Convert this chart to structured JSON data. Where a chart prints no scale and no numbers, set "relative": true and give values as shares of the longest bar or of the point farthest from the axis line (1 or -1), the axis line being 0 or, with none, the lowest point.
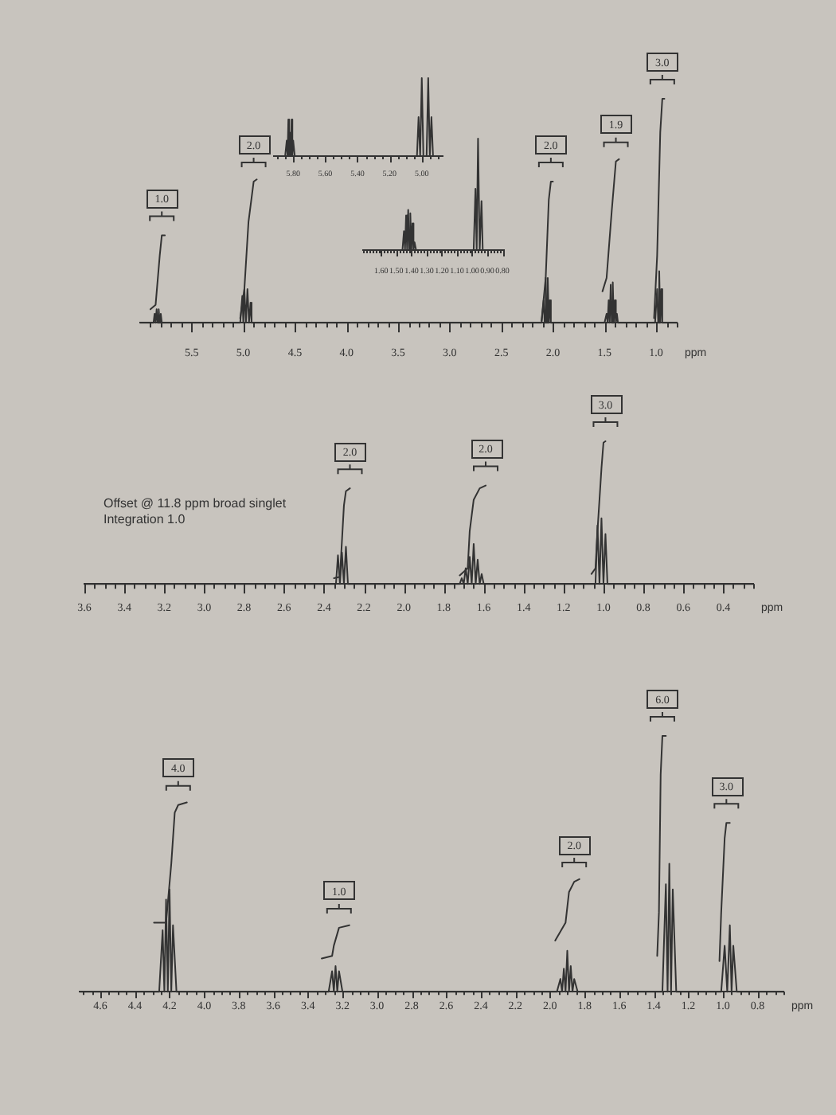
{
  "chart_data": [
    {
      "type": "line",
      "xlabel": "ppm",
      "relative": true,
      "xlim": [
        6.0,
        0.8
      ],
      "xticks": [
        {
          "value": 5.9,
          "label": null
        },
        {
          "value": 5.8,
          "label": null
        },
        {
          "value": 5.7,
          "label": null
        },
        {
          "value": 5.6,
          "label": null
        },
        5.5,
        {
          "value": 5.4,
          "label": null
        },
        {
          "value": 5.3,
          "label": null
        },
        {
          "value": 5.2,
          "label": null
        },
        {
          "value": 5.1,
          "label": null
        },
        {
          "value": 5,
          "label": "5.0"
        },
        {
          "value": 4.9,
          "label": null
        },
        {
          "value": 4.8,
          "label": null
        },
        {
          "value": 4.7,
          "label": null
        },
        {
          "value": 4.6,
          "label": null
        },
        4.5,
        {
          "value": 4.4,
          "label": null
        },
        {
          "value": 4.3,
          "label": null
        },
        {
          "value": 4.2,
          "label": null
        },
        {
          "value": 4.1,
          "label": null
        },
        {
          "value": 4,
          "label": "4.0"
        },
        {
          "value": 3.9,
          "label": null
        },
        {
          "value": 3.8,
          "label": null
        },
        {
          "value": 3.7,
          "label": null
        },
        {
          "value": 3.6,
          "label": null
        },
        3.5,
        {
          "value": 3.4,
          "label": null
        },
        {
          "value": 3.3,
          "label": null
        },
        {
          "value": 3.2,
          "label": null
        },
        {
          "value": 3.1,
          "label": null
        },
        {
          "value": 3,
          "label": "3.0"
        },
        {
          "value": 2.9,
          "label": null
        },
        {
          "value": 2.8,
          "label": null
        },
        {
          "value": 2.7,
          "label": null
        },
        {
          "value": 2.6,
          "label": null
        },
        2.5,
        {
          "value": 2.4,
          "label": null
        },
        {
          "value": 2.3,
          "label": null
        },
        {
          "value": 2.2,
          "label": null
        },
        {
          "value": 2.1,
          "label": null
        },
        {
          "value": 2,
          "label": "2.0"
        },
        {
          "value": 1.9,
          "label": null
        },
        {
          "value": 1.8,
          "label": null
        },
        {
          "value": 1.7,
          "label": null
        },
        {
          "value": 1.6,
          "label": null
        },
        1.5,
        {
          "value": 1.4,
          "label": null
        },
        {
          "value": 1.3,
          "label": null
        },
        {
          "value": 1.2,
          "label": null
        },
        {
          "value": 1.1,
          "label": null
        },
        {
          "value": 1,
          "label": "1.0"
        },
        {
          "value": 0.9,
          "label": null
        },
        {
          "value": 0.8,
          "label": null
        }
      ],
      "series": [
        {
          "color": "#333333",
          "x": [
            6.0,
            5.87,
            5.86,
            5.85,
            5.84,
            5.83,
            5.82,
            5.81,
            5.8,
            5.79,
            5.03,
            5.01,
            5.0,
            4.99,
            4.975,
            4.96,
            4.945,
            4.93,
            4.92,
            2.11,
            2.09,
            2.08,
            2.07,
            2.06,
            2.05,
            2.04,
            2.03,
            2.02,
            1.5,
            1.48,
            1.47,
            1.46,
            1.45,
            1.44,
            1.43,
            1.42,
            1.41,
            1.4,
            1.39,
            1.38,
            1.37,
            1.01,
            0.99,
            0.98,
            0.97,
            0.96,
            0.95,
            0.94,
            0.8
          ],
          "values": [
            0,
            0,
            0.04,
            0,
            0.06,
            0,
            0.06,
            0,
            0.04,
            0,
            0,
            0.12,
            0,
            0.15,
            0,
            0.15,
            0,
            0.09,
            0,
            0,
            0.1,
            0,
            0.2,
            0,
            0.2,
            0,
            0.1,
            0,
            0,
            0.04,
            0,
            0.1,
            0,
            0.17,
            0,
            0.18,
            0,
            0.1,
            0,
            0.04,
            0,
            0,
            0.15,
            0,
            0.23,
            0,
            0.15,
            0,
            0
          ]
        },
        {
          "color": "#333333",
          "x": [
            5.9,
            5.85,
            5.81,
            5.79,
            5.76,
            5.4,
            5.03,
            4.99,
            4.95,
            4.9,
            4.87,
            3.0,
            2.11,
            2.07,
            2.04,
            2.02,
            2.0,
            1.7,
            1.52,
            1.48,
            1.43,
            1.39,
            1.36,
            1.2,
            1.02,
            0.99,
            0.96,
            0.94,
            0.92
          ],
          "values": [
            0.06,
            0.08,
            0.3,
            0.39,
            0.39,
            null,
            0.02,
            0.15,
            0.45,
            0.63,
            0.64,
            null,
            0.01,
            0.2,
            0.55,
            0.63,
            0.63,
            null,
            0.14,
            0.2,
            0.5,
            0.72,
            0.73,
            null,
            0.02,
            0.3,
            0.85,
            1.0,
            1.0
          ]
        }
      ],
      "annotations": [
        {
          "text": "1.0",
          "x": 5.79,
          "y": 0.39
        },
        {
          "text": "2.0",
          "x": 4.9,
          "y": 0.63
        },
        {
          "text": "2.0",
          "x": 2.02,
          "y": 0.63
        },
        {
          "text": "1.9",
          "x": 1.39,
          "y": 0.72
        },
        {
          "text": "3.0",
          "x": 0.94,
          "y": 1.0
        }
      ]
    },
    {
      "type": "line",
      "relative": true,
      "xlim": [
        5.92,
        4.87
      ],
      "xticks": [
        {
          "value": 5.9,
          "label": null
        },
        {
          "value": 5.85,
          "label": null
        },
        {
          "value": 5.8,
          "label": "5.80"
        },
        {
          "value": 5.75,
          "label": null
        },
        {
          "value": 5.7,
          "label": null
        },
        {
          "value": 5.65,
          "label": null
        },
        {
          "value": 5.6,
          "label": "5.60"
        },
        {
          "value": 5.55,
          "label": null
        },
        {
          "value": 5.5,
          "label": null
        },
        {
          "value": 5.45,
          "label": null
        },
        {
          "value": 5.4,
          "label": "5.40"
        },
        {
          "value": 5.35,
          "label": null
        },
        {
          "value": 5.3,
          "label": null
        },
        {
          "value": 5.25,
          "label": null
        },
        {
          "value": 5.2,
          "label": "5.20"
        },
        {
          "value": 5.15,
          "label": null
        },
        {
          "value": 5.1,
          "label": null
        },
        {
          "value": 5.05,
          "label": null
        },
        {
          "value": 5,
          "label": "5.00"
        },
        {
          "value": 4.95,
          "label": null
        },
        {
          "value": 4.9,
          "label": null
        }
      ],
      "series": [
        {
          "color": "#333333",
          "x": [
            5.92,
            5.85,
            5.84,
            5.835,
            5.83,
            5.825,
            5.82,
            5.815,
            5.81,
            5.805,
            5.8,
            5.79,
            5.03,
            5.02,
            5.01,
            5.0,
            4.99,
            4.97,
            4.96,
            4.95,
            4.94,
            4.93,
            4.87
          ],
          "values": [
            0,
            0,
            0.2,
            0,
            0.47,
            0,
            0.3,
            0,
            0.47,
            0,
            0.2,
            0,
            0,
            0.5,
            0,
            1.0,
            0,
            0,
            1.0,
            0,
            0.5,
            0,
            0
          ]
        }
      ]
    },
    {
      "type": "line",
      "relative": true,
      "xlim": [
        1.72,
        0.79
      ],
      "xticks": [
        {
          "value": 1.72,
          "label": null
        },
        {
          "value": 1.7,
          "label": null
        },
        {
          "value": 1.68,
          "label": null
        },
        {
          "value": 1.66,
          "label": null
        },
        {
          "value": 1.64,
          "label": null
        },
        {
          "value": 1.62,
          "label": null
        },
        {
          "value": 1.6,
          "label": "1.60"
        },
        {
          "value": 1.58,
          "label": null
        },
        {
          "value": 1.56,
          "label": null
        },
        {
          "value": 1.54,
          "label": null
        },
        {
          "value": 1.52,
          "label": null
        },
        {
          "value": 1.5,
          "label": "1.50"
        },
        {
          "value": 1.48,
          "label": null
        },
        {
          "value": 1.46,
          "label": null
        },
        {
          "value": 1.44,
          "label": null
        },
        {
          "value": 1.42,
          "label": null
        },
        {
          "value": 1.4,
          "label": "1.40"
        },
        {
          "value": 1.38,
          "label": null
        },
        {
          "value": 1.36,
          "label": null
        },
        {
          "value": 1.34,
          "label": null
        },
        {
          "value": 1.32,
          "label": null
        },
        {
          "value": 1.3,
          "label": "1.30"
        },
        {
          "value": 1.28,
          "label": null
        },
        {
          "value": 1.26,
          "label": null
        },
        {
          "value": 1.24,
          "label": null
        },
        {
          "value": 1.22,
          "label": null
        },
        {
          "value": 1.2,
          "label": "1.20"
        },
        {
          "value": 1.18,
          "label": null
        },
        {
          "value": 1.16,
          "label": null
        },
        {
          "value": 1.14,
          "label": null
        },
        {
          "value": 1.12,
          "label": null
        },
        {
          "value": 1.1,
          "label": "1.10"
        },
        {
          "value": 1.08,
          "label": null
        },
        {
          "value": 1.06,
          "label": null
        },
        {
          "value": 1.04,
          "label": null
        },
        {
          "value": 1.02,
          "label": null
        },
        {
          "value": 1,
          "label": "1.00"
        },
        {
          "value": 0.98,
          "label": null
        },
        {
          "value": 0.96,
          "label": null
        },
        {
          "value": 0.94,
          "label": null
        },
        {
          "value": 0.92,
          "label": null
        },
        {
          "value": 0.9,
          "label": "0.90"
        },
        {
          "value": 0.88,
          "label": null
        },
        {
          "value": 0.86,
          "label": null
        },
        {
          "value": 0.84,
          "label": null
        },
        {
          "value": 0.82,
          "label": null
        },
        {
          "value": 0.8,
          "label": "0.80"
        }
      ],
      "series": [
        {
          "color": "#333333",
          "x": [
            1.72,
            1.46,
            1.45,
            1.443,
            1.436,
            1.429,
            1.422,
            1.415,
            1.408,
            1.401,
            1.394,
            1.387,
            1.38,
            1.37,
            0.99,
            0.978,
            0.97,
            0.961,
            0.95,
            0.938,
            0.93,
            0.79
          ],
          "values": [
            0,
            0,
            0.17,
            0,
            0.31,
            0,
            0.36,
            0,
            0.33,
            0,
            0.24,
            0,
            0.07,
            0,
            0,
            0.55,
            0,
            1.0,
            0,
            0.44,
            0,
            0
          ]
        }
      ]
    },
    {
      "type": "line",
      "xlabel": "ppm",
      "relative": true,
      "xlim": [
        3.6,
        0.25
      ],
      "xticks": [
        3.6,
        {
          "value": 3.55,
          "label": null
        },
        {
          "value": 3.5,
          "label": null
        },
        {
          "value": 3.45,
          "label": null
        },
        3.4,
        {
          "value": 3.35,
          "label": null
        },
        {
          "value": 3.3,
          "label": null
        },
        {
          "value": 3.25,
          "label": null
        },
        3.2,
        {
          "value": 3.15,
          "label": null
        },
        {
          "value": 3.1,
          "label": null
        },
        {
          "value": 3.05,
          "label": null
        },
        {
          "value": 3,
          "label": "3.0"
        },
        {
          "value": 2.95,
          "label": null
        },
        {
          "value": 2.9,
          "label": null
        },
        {
          "value": 2.85,
          "label": null
        },
        2.8,
        {
          "value": 2.75,
          "label": null
        },
        {
          "value": 2.7,
          "label": null
        },
        {
          "value": 2.65,
          "label": null
        },
        2.6,
        {
          "value": 2.55,
          "label": null
        },
        {
          "value": 2.5,
          "label": null
        },
        {
          "value": 2.45,
          "label": null
        },
        2.4,
        {
          "value": 2.35,
          "label": null
        },
        {
          "value": 2.3,
          "label": null
        },
        {
          "value": 2.25,
          "label": null
        },
        2.2,
        {
          "value": 2.15,
          "label": null
        },
        {
          "value": 2.1,
          "label": null
        },
        {
          "value": 2.05,
          "label": null
        },
        {
          "value": 2,
          "label": "2.0"
        },
        {
          "value": 1.95,
          "label": null
        },
        {
          "value": 1.9,
          "label": null
        },
        {
          "value": 1.85,
          "label": null
        },
        1.8,
        {
          "value": 1.75,
          "label": null
        },
        {
          "value": 1.7,
          "label": null
        },
        {
          "value": 1.65,
          "label": null
        },
        1.6,
        {
          "value": 1.55,
          "label": null
        },
        {
          "value": 1.5,
          "label": null
        },
        {
          "value": 1.45,
          "label": null
        },
        1.4,
        {
          "value": 1.35,
          "label": null
        },
        {
          "value": 1.3,
          "label": null
        },
        {
          "value": 1.25,
          "label": null
        },
        1.2,
        {
          "value": 1.15,
          "label": null
        },
        {
          "value": 1.1,
          "label": null
        },
        {
          "value": 1.05,
          "label": null
        },
        {
          "value": 1,
          "label": "1.0"
        },
        {
          "value": 0.95,
          "label": null
        },
        {
          "value": 0.9,
          "label": null
        },
        {
          "value": 0.85,
          "label": null
        },
        0.8,
        {
          "value": 0.75,
          "label": null
        },
        {
          "value": 0.7,
          "label": null
        },
        {
          "value": 0.65,
          "label": null
        },
        0.6,
        {
          "value": 0.55,
          "label": null
        },
        {
          "value": 0.5,
          "label": null
        },
        {
          "value": 0.45,
          "label": null
        },
        0.4,
        {
          "value": 0.35,
          "label": null
        },
        {
          "value": 0.3,
          "label": null
        },
        {
          "value": 0.25,
          "label": null
        }
      ],
      "series": [
        {
          "color": "#333333",
          "x": [
            3.6,
            2.34,
            2.33,
            2.32,
            2.31,
            2.3,
            2.29,
            2.28,
            1.72,
            1.71,
            1.7,
            1.69,
            1.68,
            1.67,
            1.66,
            1.65,
            1.64,
            1.63,
            1.62,
            1.61,
            1.6,
            1.04,
            1.03,
            1.02,
            1.01,
            1.0,
            0.99,
            0.98,
            0.25
          ],
          "values": [
            0,
            0,
            0.2,
            0,
            0.22,
            0,
            0.26,
            0,
            0,
            0.04,
            0,
            0.11,
            0,
            0.19,
            0,
            0.28,
            0,
            0.17,
            0,
            0.07,
            0,
            0,
            0.41,
            0,
            0.46,
            0,
            0.35,
            0,
            0
          ]
        },
        {
          "color": "#333333",
          "x": [
            2.35,
            2.32,
            2.31,
            2.3,
            2.29,
            2.27,
            2.0,
            1.72,
            1.68,
            1.67,
            1.65,
            1.62,
            1.59,
            1.3,
            1.06,
            1.04,
            1.03,
            1.01,
            1.0,
            0.99
          ],
          "values": [
            0.04,
            0.05,
            0.3,
            0.55,
            0.65,
            0.67,
            null,
            0.06,
            0.11,
            0.37,
            0.59,
            0.67,
            0.69,
            null,
            0.07,
            0.11,
            0.37,
            0.81,
            0.99,
            1.0
          ]
        }
      ],
      "annotations": [
        {
          "text": "2.0",
          "x": 2.27,
          "y": 0.67
        },
        {
          "text": "2.0",
          "x": 1.59,
          "y": 0.69
        },
        {
          "text": "3.0",
          "x": 0.99,
          "y": 1.0
        },
        "Offset @ 11.8 ppm broad singlet",
        "Integration 1.0"
      ]
    },
    {
      "type": "line",
      "xlabel": "ppm",
      "relative": true,
      "xlim": [
        4.72,
        0.65
      ],
      "xticks": [
        {
          "value": 4.7,
          "label": null
        },
        {
          "value": 4.65,
          "label": null
        },
        4.6,
        {
          "value": 4.55,
          "label": null
        },
        {
          "value": 4.5,
          "label": null
        },
        {
          "value": 4.45,
          "label": null
        },
        4.4,
        {
          "value": 4.35,
          "label": null
        },
        {
          "value": 4.3,
          "label": null
        },
        {
          "value": 4.25,
          "label": null
        },
        4.2,
        {
          "value": 4.15,
          "label": null
        },
        {
          "value": 4.1,
          "label": null
        },
        {
          "value": 4.05,
          "label": null
        },
        {
          "value": 4,
          "label": "4.0"
        },
        {
          "value": 3.95,
          "label": null
        },
        {
          "value": 3.9,
          "label": null
        },
        {
          "value": 3.85,
          "label": null
        },
        3.8,
        {
          "value": 3.75,
          "label": null
        },
        {
          "value": 3.7,
          "label": null
        },
        {
          "value": 3.65,
          "label": null
        },
        3.6,
        {
          "value": 3.55,
          "label": null
        },
        {
          "value": 3.5,
          "label": null
        },
        {
          "value": 3.45,
          "label": null
        },
        3.4,
        {
          "value": 3.35,
          "label": null
        },
        {
          "value": 3.3,
          "label": null
        },
        {
          "value": 3.25,
          "label": null
        },
        3.2,
        {
          "value": 3.15,
          "label": null
        },
        {
          "value": 3.1,
          "label": null
        },
        {
          "value": 3.05,
          "label": null
        },
        {
          "value": 3,
          "label": "3.0"
        },
        {
          "value": 2.95,
          "label": null
        },
        {
          "value": 2.9,
          "label": null
        },
        {
          "value": 2.85,
          "label": null
        },
        2.8,
        {
          "value": 2.75,
          "label": null
        },
        {
          "value": 2.7,
          "label": null
        },
        {
          "value": 2.65,
          "label": null
        },
        2.6,
        {
          "value": 2.55,
          "label": null
        },
        {
          "value": 2.5,
          "label": null
        },
        {
          "value": 2.45,
          "label": null
        },
        2.4,
        {
          "value": 2.35,
          "label": null
        },
        {
          "value": 2.3,
          "label": null
        },
        {
          "value": 2.25,
          "label": null
        },
        2.2,
        {
          "value": 2.15,
          "label": null
        },
        {
          "value": 2.1,
          "label": null
        },
        {
          "value": 2.05,
          "label": null
        },
        {
          "value": 2,
          "label": "2.0"
        },
        {
          "value": 1.95,
          "label": null
        },
        {
          "value": 1.9,
          "label": null
        },
        {
          "value": 1.85,
          "label": null
        },
        1.8,
        {
          "value": 1.75,
          "label": null
        },
        {
          "value": 1.7,
          "label": null
        },
        {
          "value": 1.65,
          "label": null
        },
        1.6,
        {
          "value": 1.55,
          "label": null
        },
        {
          "value": 1.5,
          "label": null
        },
        {
          "value": 1.45,
          "label": null
        },
        1.4,
        {
          "value": 1.35,
          "label": null
        },
        {
          "value": 1.3,
          "label": null
        },
        {
          "value": 1.25,
          "label": null
        },
        1.2,
        {
          "value": 1.15,
          "label": null
        },
        {
          "value": 1.1,
          "label": null
        },
        {
          "value": 1.05,
          "label": null
        },
        {
          "value": 1,
          "label": "1.0"
        },
        {
          "value": 0.95,
          "label": null
        },
        {
          "value": 0.9,
          "label": null
        },
        {
          "value": 0.85,
          "label": null
        },
        0.8,
        {
          "value": 0.75,
          "label": null
        },
        {
          "value": 0.7,
          "label": null
        },
        {
          "value": 0.65,
          "label": null
        }
      ],
      "series": [
        {
          "color": "#333333",
          "x": [
            4.72,
            4.26,
            4.24,
            4.23,
            4.22,
            4.21,
            4.2,
            4.19,
            4.18,
            4.16,
            3.28,
            3.26,
            3.25,
            3.24,
            3.23,
            3.22,
            3.2,
            1.96,
            1.94,
            1.93,
            1.92,
            1.91,
            1.9,
            1.89,
            1.88,
            1.87,
            1.86,
            1.84,
            1.35,
            1.33,
            1.32,
            1.31,
            1.3,
            1.29,
            1.27,
            1.01,
            0.99,
            0.975,
            0.96,
            0.95,
            0.94,
            0.92,
            0.65
          ],
          "values": [
            0,
            0,
            0.24,
            0,
            0.36,
            0,
            0.4,
            0,
            0.26,
            0,
            0,
            0.08,
            0,
            0.1,
            0,
            0.08,
            0,
            0,
            0.05,
            0,
            0.09,
            0,
            0.16,
            0,
            0.1,
            0,
            0.05,
            0,
            0,
            0.42,
            0,
            0.5,
            0,
            0.4,
            0,
            0,
            0.18,
            0,
            0.26,
            0,
            0.18,
            0,
            0
          ]
        },
        {
          "color": "#333333",
          "x": [
            4.29,
            4.22,
            4.19,
            4.17,
            4.15,
            4.1,
            3.7,
            3.32,
            3.26,
            3.25,
            3.22,
            3.16,
            2.5,
            1.97,
            1.91,
            1.89,
            1.86,
            1.83,
            1.6,
            1.38,
            1.37,
            1.36,
            1.35,
            1.33,
            1.15,
            1.02,
            1.01,
            0.99,
            0.98,
            0.96
          ],
          "values": [
            0.27,
            0.27,
            0.5,
            0.7,
            0.73,
            0.74,
            null,
            0.13,
            0.14,
            0.18,
            0.25,
            0.26,
            null,
            0.2,
            0.27,
            0.39,
            0.43,
            0.44,
            null,
            0.14,
            0.31,
            0.85,
            1.0,
            1.0,
            null,
            0.12,
            0.31,
            0.6,
            0.66,
            0.66
          ]
        }
      ],
      "annotations": [
        {
          "text": "4.0",
          "x": 4.15,
          "y": 0.73
        },
        {
          "text": "1.0",
          "x": 3.22,
          "y": 0.25
        },
        {
          "text": "2.0",
          "x": 1.86,
          "y": 0.43
        },
        {
          "text": "6.0",
          "x": 1.35,
          "y": 1.0
        },
        {
          "text": "3.0",
          "x": 0.98,
          "y": 0.66
        }
      ]
    }
  ]
}
